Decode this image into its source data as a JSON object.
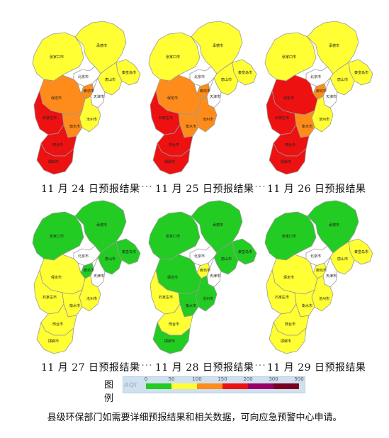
{
  "maps": [
    {
      "caption": "11 月 24 日预报结果",
      "regions": {
        "zjk": "yellow",
        "cd": "yellow",
        "qhd": "yellow",
        "ts": "yellow",
        "bj": "white",
        "tj": "white",
        "lf": "orange",
        "bd": "orange",
        "cz": "yellow",
        "sjz": "red",
        "hs": "orange",
        "xt": "red",
        "hd": "red"
      }
    },
    {
      "caption": "11 月 25 日预报结果",
      "regions": {
        "zjk": "yellow",
        "cd": "yellow",
        "qhd": "yellow",
        "ts": "yellow",
        "bj": "white",
        "tj": "white",
        "lf": "orange",
        "bd": "orange",
        "cz": "orange",
        "sjz": "red",
        "hs": "orange",
        "xt": "red",
        "hd": "red"
      }
    },
    {
      "caption": "11 月 26 日预报结果",
      "regions": {
        "zjk": "yellow",
        "cd": "yellow",
        "qhd": "yellow",
        "ts": "yellow",
        "bj": "white",
        "tj": "white",
        "lf": "orange",
        "bd": "red",
        "cz": "yellow",
        "sjz": "red",
        "hs": "orange",
        "xt": "red",
        "hd": "red"
      }
    },
    {
      "caption": "11 月 27 日预报结果",
      "regions": {
        "zjk": "green",
        "cd": "green",
        "qhd": "green",
        "ts": "green",
        "bj": "white",
        "tj": "white",
        "lf": "green",
        "bd": "yellow",
        "cz": "yellow",
        "sjz": "yellow",
        "hs": "yellow",
        "xt": "yellow",
        "hd": "yellow"
      }
    },
    {
      "caption": "11 月 28 日预报结果",
      "regions": {
        "zjk": "green",
        "cd": "green",
        "qhd": "green",
        "ts": "green",
        "bj": "white",
        "tj": "white",
        "lf": "yellow",
        "bd": "green",
        "cz": "green",
        "sjz": "yellow",
        "hs": "green",
        "xt": "yellow",
        "hd": "green"
      }
    },
    {
      "caption": "11 月 29 日预报结果",
      "regions": {
        "zjk": "green",
        "cd": "green",
        "qhd": "yellow",
        "ts": "yellow",
        "bj": "white",
        "tj": "white",
        "lf": "yellow",
        "bd": "yellow",
        "cz": "yellow",
        "sjz": "yellow",
        "hs": "yellow",
        "xt": "yellow",
        "hd": "yellow"
      }
    }
  ],
  "city_labels": {
    "zjk": "张家口市",
    "cd": "承德市",
    "qhd": "秦皇岛市",
    "ts": "唐山市",
    "bj": "北京市",
    "tj": "天津市",
    "lf": "廊坊市",
    "bd": "保定市",
    "cz": "沧州市",
    "sjz": "石家庄市",
    "hs": "衡水市",
    "xt": "邢台市",
    "hd": "邯郸市"
  },
  "colors": {
    "green": "#22cc22",
    "yellow": "#ffff33",
    "orange": "#ff8c1a",
    "red": "#ee1111",
    "purple": "#990066",
    "maroon": "#7a0020",
    "white": "#ffffff"
  },
  "legend": {
    "title": "图例",
    "label": "AQI",
    "ticks": [
      "0",
      "50",
      "100",
      "150",
      "200",
      "300",
      "500"
    ],
    "scale": [
      "green",
      "yellow",
      "orange",
      "red",
      "purple",
      "maroon"
    ]
  },
  "footnote": "县级环保部门如需要详细预报结果和相关数据，可向应急预警中心申请。"
}
